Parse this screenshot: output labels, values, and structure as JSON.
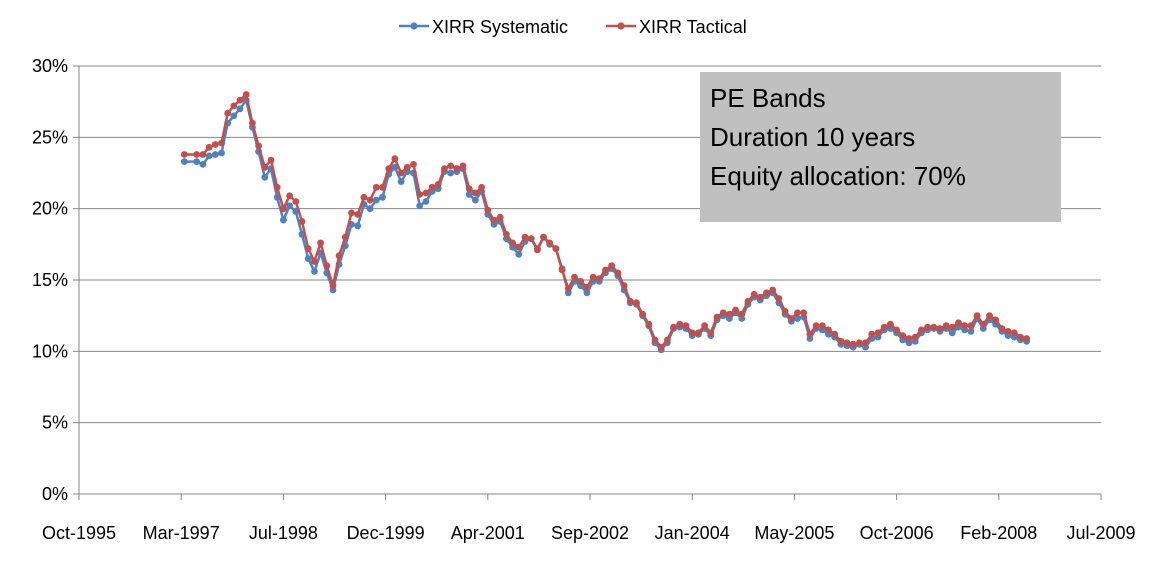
{
  "chart_data": {
    "type": "line",
    "title": "",
    "xlabel": "",
    "ylabel": "",
    "x_axis": {
      "type": "date",
      "min": "1995-10-01",
      "max": "2009-07-01",
      "tick_labels": [
        "Oct-1995",
        "Mar-1997",
        "Jul-1998",
        "Dec-1999",
        "Apr-2001",
        "Sep-2002",
        "Jan-2004",
        "May-2005",
        "Oct-2006",
        "Feb-2008",
        "Jul-2009"
      ]
    },
    "y_axis": {
      "min": 0,
      "max": 30,
      "tick_values": [
        0,
        5,
        10,
        15,
        20,
        25,
        30
      ],
      "tick_labels": [
        "0%",
        "5%",
        "10%",
        "15%",
        "20%",
        "25%",
        "30%"
      ]
    },
    "grid": "horizontal",
    "legend": "top-center",
    "annotation": {
      "lines": [
        "PE Bands",
        "Duration 10 years",
        "Equity allocation: 70%"
      ],
      "background": "#c0c0c0"
    },
    "x": [
      "1997-03",
      "1997-05",
      "1997-06",
      "1997-07",
      "1997-08",
      "1997-09",
      "1997-10",
      "1997-11",
      "1997-12",
      "1998-01",
      "1998-02",
      "1998-03",
      "1998-04",
      "1998-05",
      "1998-06",
      "1998-07",
      "1998-08",
      "1998-09",
      "1998-10",
      "1998-11",
      "1998-12",
      "1999-01",
      "1999-02",
      "1999-03",
      "1999-04",
      "1999-05",
      "1999-06",
      "1999-07",
      "1999-08",
      "1999-09",
      "1999-10",
      "1999-11",
      "1999-12",
      "2000-01",
      "2000-02",
      "2000-03",
      "2000-04",
      "2000-05",
      "2000-06",
      "2000-07",
      "2000-08",
      "2000-09",
      "2000-10",
      "2000-11",
      "2000-12",
      "2001-01",
      "2001-02",
      "2001-03",
      "2001-04",
      "2001-05",
      "2001-06",
      "2001-07",
      "2001-08",
      "2001-09",
      "2001-10",
      "2001-11",
      "2001-12",
      "2002-01",
      "2002-02",
      "2002-03",
      "2002-04",
      "2002-05",
      "2002-06",
      "2002-07",
      "2002-08",
      "2002-09",
      "2002-10",
      "2002-11",
      "2002-12",
      "2003-01",
      "2003-02",
      "2003-03",
      "2003-04",
      "2003-05",
      "2003-06",
      "2003-07",
      "2003-08",
      "2003-09",
      "2003-10",
      "2003-11",
      "2003-12",
      "2004-01",
      "2004-02",
      "2004-03",
      "2004-04",
      "2004-05",
      "2004-06",
      "2004-07",
      "2004-08",
      "2004-09",
      "2004-10",
      "2004-11",
      "2004-12",
      "2005-01",
      "2005-02",
      "2005-03",
      "2005-04",
      "2005-05",
      "2005-06",
      "2005-07",
      "2005-08",
      "2005-09",
      "2005-10",
      "2005-11",
      "2005-12",
      "2006-01",
      "2006-02",
      "2006-03",
      "2006-04",
      "2006-05",
      "2006-06",
      "2006-07",
      "2006-08",
      "2006-09",
      "2006-10",
      "2006-11",
      "2006-12",
      "2007-01",
      "2007-02",
      "2007-03",
      "2007-04",
      "2007-05",
      "2007-06",
      "2007-07",
      "2007-08",
      "2007-09",
      "2007-10",
      "2007-11",
      "2007-12",
      "2008-01",
      "2008-02",
      "2008-03",
      "2008-04",
      "2008-05",
      "2008-06",
      "2008-07"
    ],
    "series": [
      {
        "name": "XIRR Systematic",
        "color": "#4f81bd",
        "values": [
          23.3,
          23.3,
          23.1,
          23.7,
          23.8,
          23.9,
          26.0,
          26.5,
          27.0,
          27.6,
          25.7,
          24.0,
          22.2,
          22.8,
          20.8,
          19.2,
          20.2,
          19.8,
          18.2,
          16.5,
          15.6,
          16.9,
          15.5,
          14.3,
          16.1,
          17.4,
          18.9,
          18.8,
          20.3,
          20.0,
          20.6,
          20.8,
          22.4,
          22.9,
          21.9,
          22.6,
          22.5,
          20.2,
          20.5,
          21.2,
          21.4,
          22.6,
          22.5,
          22.6,
          22.8,
          21.0,
          20.6,
          21.2,
          19.6,
          18.9,
          19.1,
          17.9,
          17.3,
          16.8,
          17.7,
          17.9,
          17.2,
          18.0,
          17.5,
          17.2,
          15.8,
          14.1,
          14.9,
          14.6,
          14.1,
          14.9,
          14.9,
          15.5,
          15.8,
          15.3,
          14.3,
          13.4,
          13.3,
          12.5,
          11.8,
          10.6,
          10.1,
          10.6,
          11.6,
          11.7,
          11.6,
          11.1,
          11.2,
          11.6,
          11.1,
          12.2,
          12.5,
          12.3,
          12.7,
          12.3,
          13.3,
          13.8,
          13.6,
          13.9,
          14.1,
          13.4,
          12.6,
          12.1,
          12.3,
          12.4,
          10.9,
          11.6,
          11.5,
          11.2,
          11.0,
          10.5,
          10.4,
          10.3,
          10.5,
          10.3,
          10.9,
          11.0,
          11.5,
          11.6,
          11.3,
          10.8,
          10.6,
          10.7,
          11.3,
          11.5,
          11.6,
          11.4,
          11.6,
          11.3,
          11.7,
          11.5,
          11.4,
          12.3,
          11.6,
          12.2,
          11.9,
          11.4,
          11.1,
          11.0,
          10.8,
          10.7
        ]
      },
      {
        "name": "XIRR Tactical",
        "color": "#c0504d",
        "values": [
          23.8,
          23.8,
          23.8,
          24.3,
          24.5,
          24.6,
          26.7,
          27.2,
          27.6,
          28.0,
          26.0,
          24.4,
          22.9,
          23.4,
          21.5,
          20.0,
          20.9,
          20.5,
          19.1,
          17.2,
          16.3,
          17.6,
          16.0,
          14.6,
          16.7,
          18.0,
          19.7,
          19.6,
          20.8,
          20.6,
          21.5,
          21.5,
          22.8,
          23.5,
          22.5,
          22.9,
          23.1,
          21.0,
          21.1,
          21.5,
          21.7,
          22.8,
          23.0,
          22.8,
          23.0,
          21.4,
          21.1,
          21.5,
          19.9,
          19.2,
          19.4,
          18.2,
          17.6,
          17.3,
          18.0,
          17.9,
          17.1,
          18.0,
          17.6,
          17.2,
          15.7,
          14.4,
          15.2,
          14.9,
          14.5,
          15.2,
          15.1,
          15.7,
          16.0,
          15.5,
          14.6,
          13.5,
          13.4,
          12.6,
          11.9,
          10.8,
          10.3,
          10.8,
          11.7,
          11.9,
          11.8,
          11.3,
          11.3,
          11.8,
          11.3,
          12.4,
          12.7,
          12.6,
          12.9,
          12.6,
          13.5,
          14.0,
          13.8,
          14.1,
          14.3,
          13.7,
          12.8,
          12.3,
          12.7,
          12.7,
          11.2,
          11.8,
          11.8,
          11.5,
          11.2,
          10.7,
          10.6,
          10.5,
          10.6,
          10.6,
          11.2,
          11.3,
          11.7,
          11.9,
          11.5,
          11.1,
          10.9,
          11.0,
          11.5,
          11.7,
          11.7,
          11.6,
          11.8,
          11.7,
          12.0,
          11.8,
          11.8,
          12.5,
          11.9,
          12.5,
          12.2,
          11.6,
          11.4,
          11.3,
          11.0,
          10.9
        ]
      }
    ]
  }
}
